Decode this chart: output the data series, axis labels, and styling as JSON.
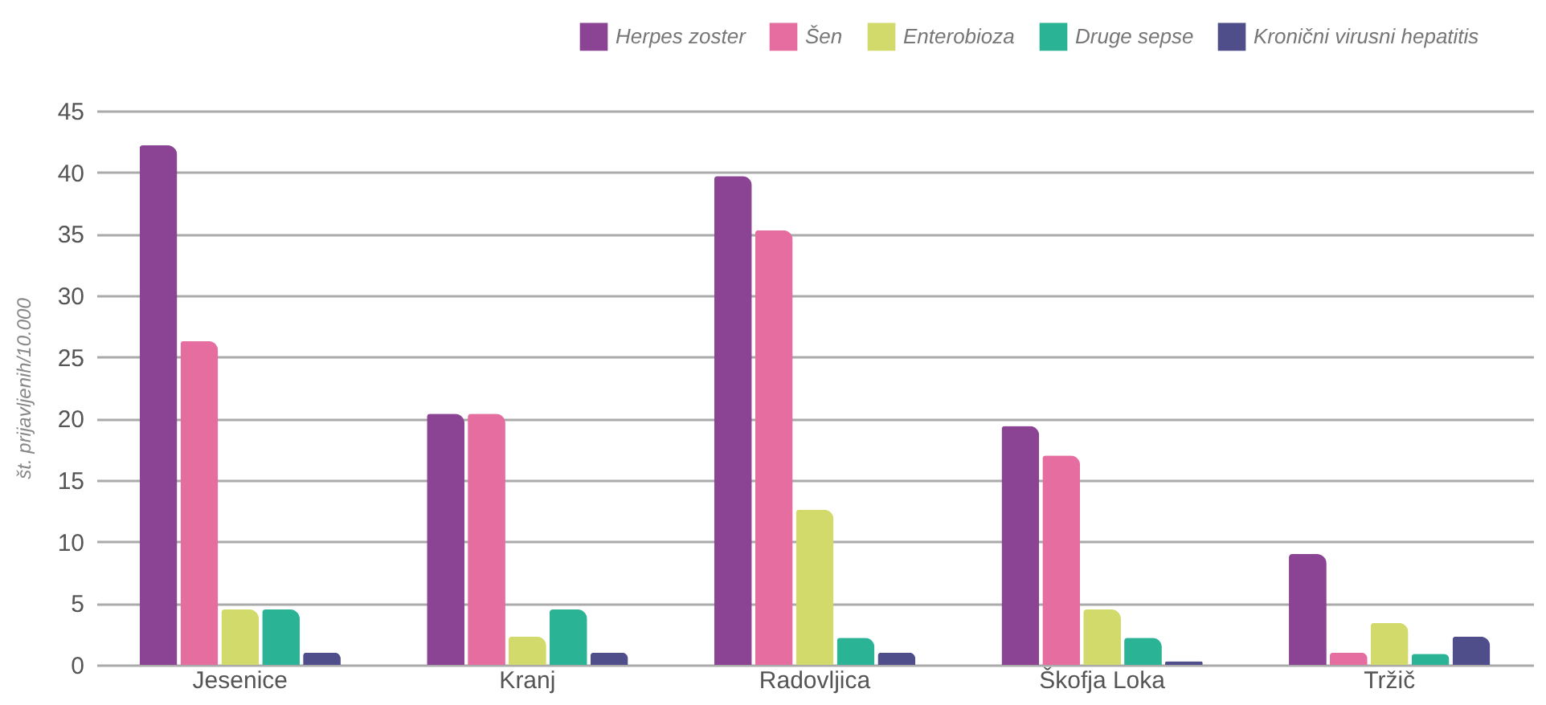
{
  "chart_data": {
    "type": "bar",
    "ylabel": "št. prijavljenih/10.000",
    "categories": [
      "Jesenice",
      "Kranj",
      "Radovljica",
      "Škofja Loka",
      "Tržič"
    ],
    "series": [
      {
        "name": "Herpes zoster",
        "color": "#8b4393",
        "values": [
          42.2,
          20.4,
          39.7,
          19.4,
          9.0
        ]
      },
      {
        "name": "Šen",
        "color": "#e56d9f",
        "values": [
          26.3,
          20.4,
          35.3,
          17.0,
          1.0
        ]
      },
      {
        "name": "Enterobioza",
        "color": "#d3da6c",
        "values": [
          4.5,
          2.3,
          12.6,
          4.5,
          3.4
        ]
      },
      {
        "name": "Druge sepse",
        "color": "#2bb395",
        "values": [
          4.5,
          4.5,
          2.2,
          2.2,
          0.9
        ]
      },
      {
        "name": "Kronični virusni hepatitis",
        "color": "#4f4e8b",
        "values": [
          1.0,
          1.0,
          1.0,
          0.3,
          2.3
        ]
      }
    ],
    "ylim": [
      0,
      45
    ],
    "yticks": [
      0,
      5,
      10,
      15,
      20,
      25,
      30,
      35,
      40,
      45
    ],
    "grid": "y",
    "legend": "top right"
  }
}
